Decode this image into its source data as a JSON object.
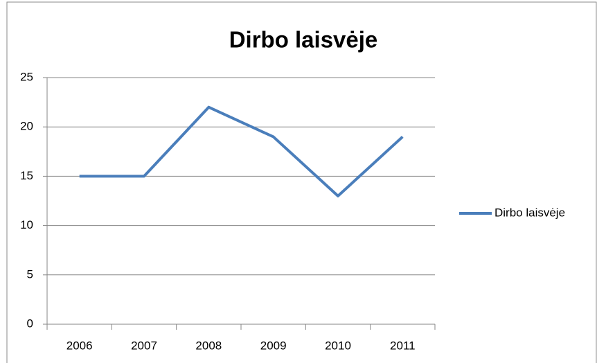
{
  "chart_data": {
    "type": "line",
    "title": "Dirbo laisvėje",
    "categories": [
      "2006",
      "2007",
      "2008",
      "2009",
      "2010",
      "2011"
    ],
    "series": [
      {
        "name": "Dirbo laisvėje",
        "color": "#4a7ebb",
        "values": [
          15,
          15,
          22,
          19,
          13,
          19
        ]
      }
    ],
    "ylim": [
      0,
      25
    ],
    "yticks": [
      0,
      5,
      10,
      15,
      20,
      25
    ],
    "grid": true,
    "legend": "right"
  }
}
